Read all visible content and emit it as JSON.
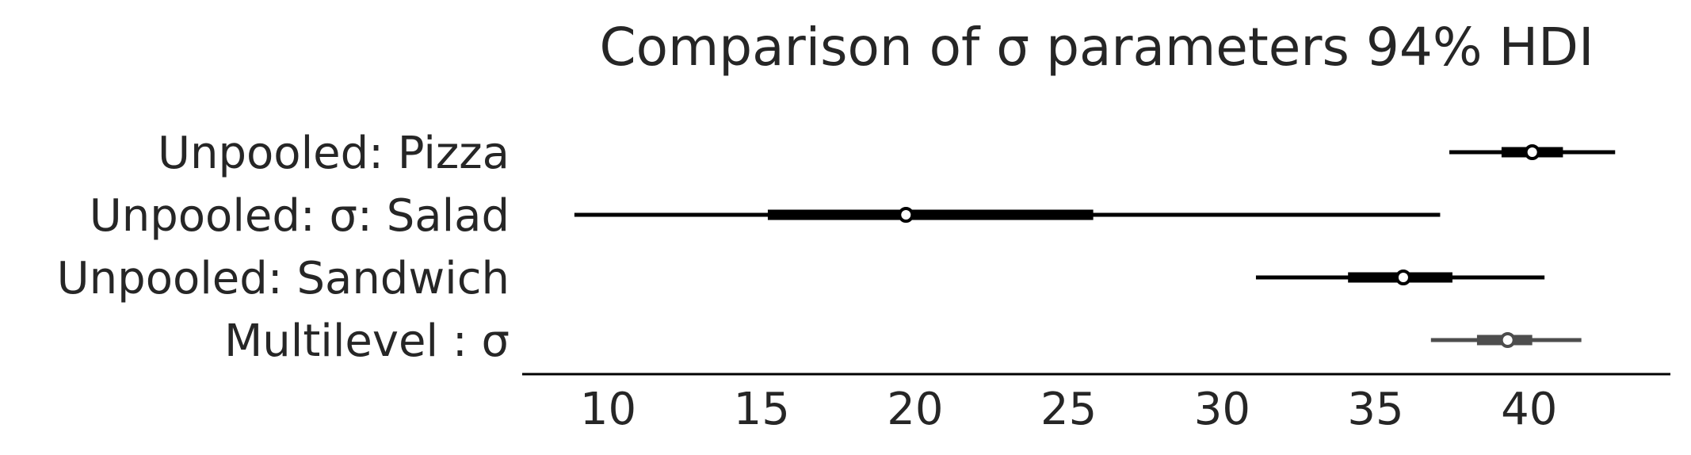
{
  "chart_data": {
    "type": "forest",
    "title": "Comparison of σ parameters 94% HDI",
    "xlabel": "",
    "ylabel": "",
    "xlim": [
      7.2,
      44.6
    ],
    "xticks": [
      10,
      15,
      20,
      25,
      30,
      35,
      40
    ],
    "grid": false,
    "series": [
      {
        "label": "Unpooled:  Pizza",
        "median": 40.1,
        "hdi_94": [
          37.4,
          42.8
        ],
        "iqr": [
          39.1,
          41.1
        ],
        "color": "#000000"
      },
      {
        "label": "Unpooled: σ: Salad",
        "median": 19.7,
        "hdi_94": [
          8.9,
          37.1
        ],
        "iqr": [
          15.2,
          25.8
        ],
        "color": "#000000"
      },
      {
        "label": "Unpooled:  Sandwich",
        "median": 35.9,
        "hdi_94": [
          31.1,
          40.5
        ],
        "iqr": [
          34.1,
          37.5
        ],
        "color": "#000000"
      },
      {
        "label": "Multilevel : σ",
        "median": 39.3,
        "hdi_94": [
          36.8,
          41.7
        ],
        "iqr": [
          38.3,
          40.1
        ],
        "color": "#4d4d4d"
      }
    ]
  }
}
